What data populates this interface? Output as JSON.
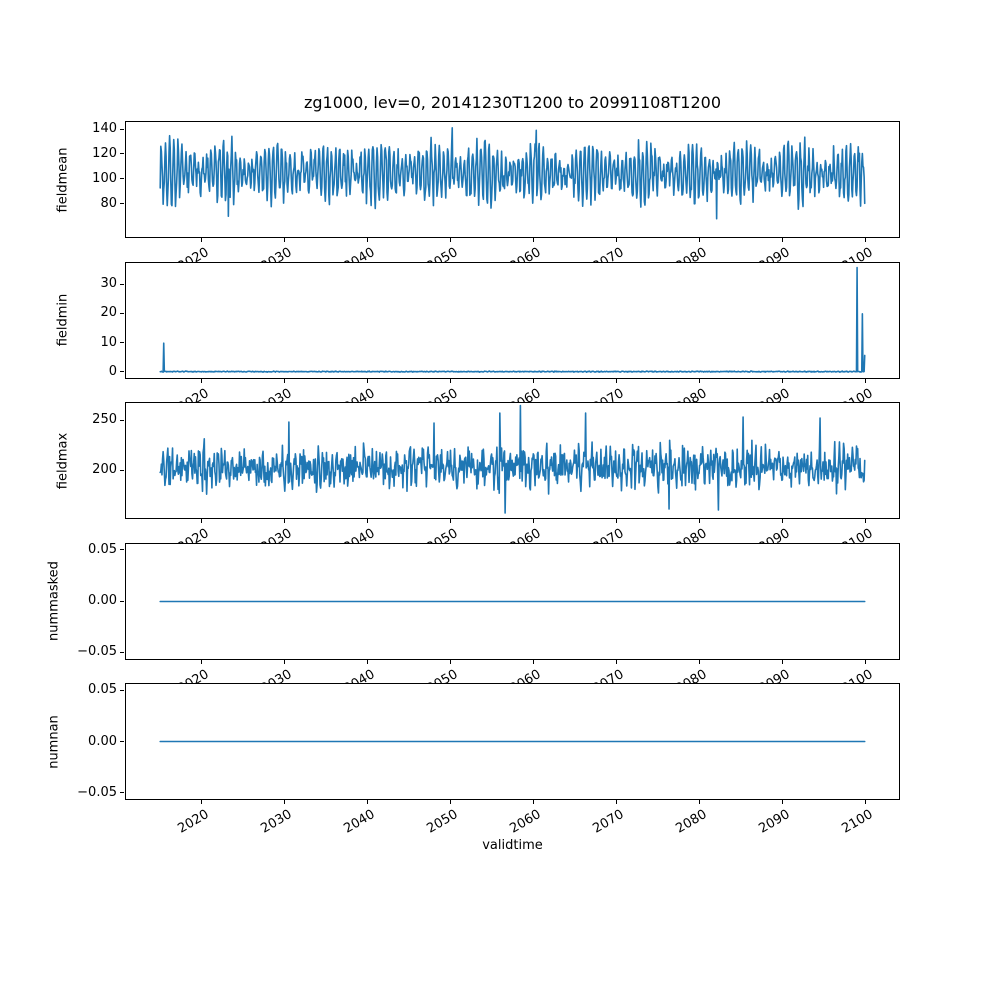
{
  "figure": {
    "title": "zg1000, lev=0, 20141230T1200 to 20991108T1200",
    "xlabel": "validtime",
    "background_color": "#ffffff",
    "line_color": "#1f77b4",
    "frame_color": "#000000",
    "text_color": "#000000",
    "xlim": [
      2010.75,
      2104.1
    ],
    "xticks": [
      2020,
      2030,
      2040,
      2050,
      2060,
      2070,
      2080,
      2090,
      2100
    ],
    "xtick_labels": [
      "2020",
      "2030",
      "2040",
      "2050",
      "2060",
      "2070",
      "2080",
      "2090",
      "2100"
    ],
    "x_data_start": 2014.99,
    "x_data_end": 2099.85
  },
  "chart_data": [
    {
      "type": "line",
      "ylabel": "fieldmean",
      "ylim": [
        52.5,
        146.5
      ],
      "yticks": [
        80,
        100,
        120,
        140
      ],
      "ytick_labels": [
        "80",
        "100",
        "120",
        "140"
      ],
      "value_range_observed": [
        68,
        141
      ],
      "series": {
        "kind": "noisy",
        "seed": 7,
        "n": 1200,
        "base": 105,
        "amp": 22,
        "period_years": 0.5,
        "amp_mod_period_years": 6.3,
        "noise": 12,
        "clamp": [
          68,
          141
        ]
      },
      "spikes": [
        [
          2023.2,
          70
        ],
        [
          2050.2,
          141
        ],
        [
          2060.3,
          139
        ],
        [
          2082.0,
          68
        ]
      ]
    },
    {
      "type": "line",
      "ylabel": "fieldmin",
      "ylim": [
        -2.22,
        37.68
      ],
      "yticks": [
        0,
        10,
        20,
        30
      ],
      "ytick_labels": [
        "0",
        "10",
        "20",
        "30"
      ],
      "value_range_observed": [
        0,
        35.8
      ],
      "series": {
        "kind": "noisy",
        "seed": 3,
        "n": 1200,
        "base": 0.3,
        "amp": 0.08,
        "period_years": 0.5,
        "amp_mod_period_years": 6.3,
        "noise": 0.16,
        "clamp": [
          0.04,
          0.85
        ]
      },
      "spikes": [
        [
          2015.4,
          10
        ],
        [
          2098.95,
          35.8
        ],
        [
          2099.3,
          0.15
        ],
        [
          2099.6,
          20
        ],
        [
          2099.85,
          5.8
        ]
      ]
    },
    {
      "type": "line",
      "ylabel": "fieldmax",
      "ylim": [
        151,
        268
      ],
      "yticks": [
        200,
        250
      ],
      "ytick_labels": [
        "200",
        "250"
      ],
      "value_range_observed": [
        157,
        265
      ],
      "series": {
        "kind": "noisy",
        "seed": 11,
        "n": 1200,
        "base": 203,
        "amp": 9,
        "period_years": 0.55,
        "amp_mod_period_years": 5.1,
        "noise": 22,
        "clamp": [
          157,
          262
        ]
      },
      "spikes": [
        [
          2030.5,
          248
        ],
        [
          2048.0,
          247
        ],
        [
          2055.9,
          257
        ],
        [
          2056.5,
          157
        ],
        [
          2058.4,
          264.5
        ],
        [
          2066.2,
          257
        ],
        [
          2076.3,
          161
        ],
        [
          2082.2,
          160
        ],
        [
          2085.2,
          253
        ],
        [
          2094.5,
          252
        ]
      ]
    },
    {
      "type": "line",
      "ylabel": "nummasked",
      "ylim": [
        -0.057,
        0.057
      ],
      "yticks": [
        0.05,
        0,
        -0.05
      ],
      "ytick_labels": [
        "0.05",
        "0.00",
        "−0.05"
      ],
      "value_range_observed": [
        0,
        0
      ],
      "series": {
        "kind": "constant",
        "value": 0
      },
      "spikes": []
    },
    {
      "type": "line",
      "ylabel": "numnan",
      "ylim": [
        -0.057,
        0.057
      ],
      "yticks": [
        0.05,
        0,
        -0.05
      ],
      "ytick_labels": [
        "0.05",
        "0.00",
        "−0.05"
      ],
      "value_range_observed": [
        0,
        0
      ],
      "series": {
        "kind": "constant",
        "value": 0
      },
      "spikes": []
    }
  ]
}
